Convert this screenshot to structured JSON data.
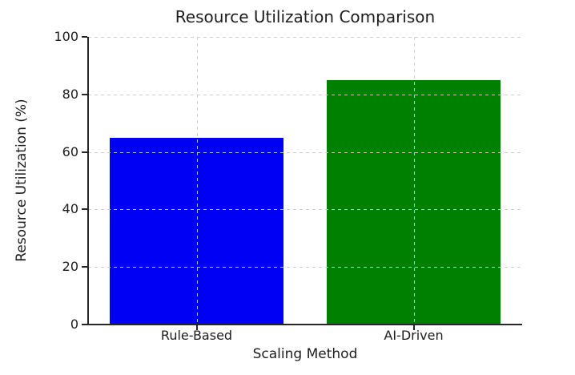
{
  "chart_data": {
    "type": "bar",
    "title": "Resource Utilization Comparison",
    "xlabel": "Scaling Method",
    "ylabel": "Resource Utilization (%)",
    "categories": [
      "Rule-Based",
      "AI-Driven"
    ],
    "values": [
      65,
      85
    ],
    "bar_colors": [
      "#0000f5",
      "#008000"
    ],
    "ylim": [
      0,
      100
    ],
    "yticks": [
      0,
      20,
      40,
      60,
      80,
      100
    ],
    "grid": "both, dashed, drawn above bars",
    "legend": "none",
    "spine_color": "#262626",
    "grid_color": "#cacaca",
    "background_color": "#ffffff"
  }
}
